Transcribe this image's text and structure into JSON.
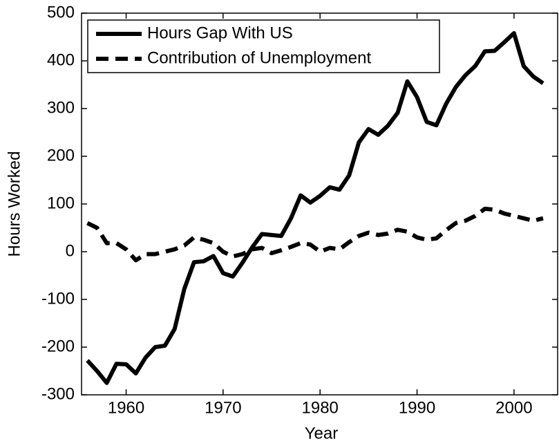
{
  "chart_data": {
    "type": "line",
    "x_label": "Year",
    "y_label": "Hours Worked",
    "x": [
      1956,
      1957,
      1958,
      1959,
      1960,
      1961,
      1962,
      1963,
      1964,
      1965,
      1966,
      1967,
      1968,
      1969,
      1970,
      1971,
      1972,
      1973,
      1974,
      1975,
      1976,
      1977,
      1978,
      1979,
      1980,
      1981,
      1982,
      1983,
      1984,
      1985,
      1986,
      1987,
      1988,
      1989,
      1990,
      1991,
      1992,
      1993,
      1994,
      1995,
      1996,
      1997,
      1998,
      1999,
      2000,
      2001,
      2002,
      2003
    ],
    "series": [
      {
        "name": "Hours Gap With US",
        "color": "#000000",
        "dash": "solid",
        "values": [
          -228,
          -250,
          -275,
          -235,
          -236,
          -255,
          -222,
          -200,
          -197,
          -162,
          -78,
          -22,
          -20,
          -9,
          -45,
          -52,
          -23,
          9,
          37,
          35,
          33,
          70,
          118,
          103,
          117,
          135,
          130,
          160,
          229,
          257,
          245,
          264,
          291,
          357,
          324,
          272,
          265,
          310,
          345,
          370,
          389,
          420,
          421,
          439,
          458,
          389,
          367,
          353
        ]
      },
      {
        "name": "Contribution of Unemployment",
        "color": "#000000",
        "dash": "dashed",
        "values": [
          60,
          50,
          18,
          18,
          5,
          -18,
          -5,
          -5,
          0,
          5,
          13,
          30,
          25,
          18,
          0,
          -10,
          -5,
          5,
          8,
          -3,
          3,
          10,
          18,
          15,
          0,
          8,
          5,
          20,
          33,
          40,
          35,
          38,
          46,
          42,
          30,
          25,
          28,
          45,
          60,
          65,
          75,
          90,
          88,
          80,
          75,
          70,
          65,
          70
        ]
      }
    ],
    "xlim": [
      1955.4,
      2004.5
    ],
    "xticks": [
      1960,
      1970,
      1980,
      1990,
      2000
    ],
    "ylim": [
      -300,
      500
    ],
    "yticks": [
      -300,
      -200,
      -100,
      0,
      100,
      200,
      300,
      400,
      500
    ],
    "legend": "upper left",
    "grid": false
  }
}
